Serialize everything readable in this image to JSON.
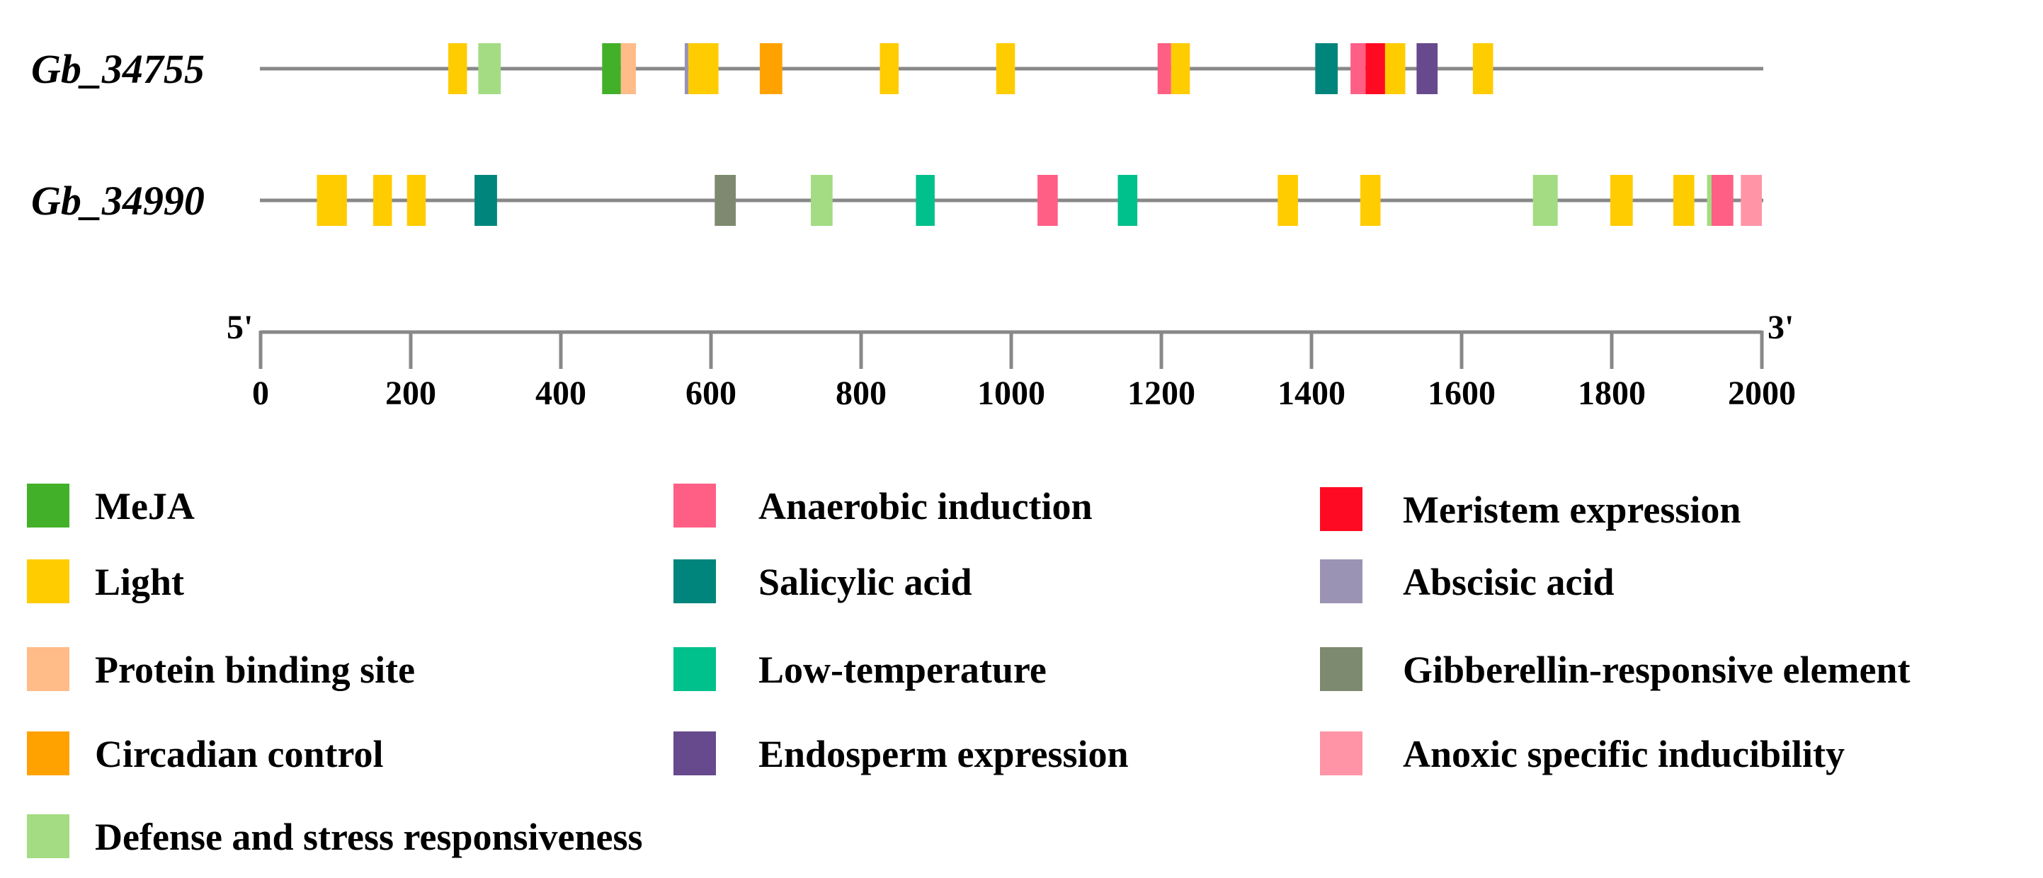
{
  "chart_data": {
    "type": "promoter-element-map",
    "genes": [
      {
        "name": "Gb_34755",
        "elements": [
          {
            "type": "Light",
            "start": 250,
            "end": 275
          },
          {
            "type": "Defense and stress responsiveness",
            "start": 290,
            "end": 320
          },
          {
            "type": "MeJA",
            "start": 455,
            "end": 480
          },
          {
            "type": "Protein binding site",
            "start": 480,
            "end": 500
          },
          {
            "type": "Abscisic acid",
            "start": 565,
            "end": 570
          },
          {
            "type": "Light",
            "start": 570,
            "end": 610
          },
          {
            "type": "Circadian control",
            "start": 665,
            "end": 695
          },
          {
            "type": "Light",
            "start": 825,
            "end": 850
          },
          {
            "type": "Light",
            "start": 980,
            "end": 1005
          },
          {
            "type": "Anaerobic induction",
            "start": 1195,
            "end": 1213
          },
          {
            "type": "Light",
            "start": 1213,
            "end": 1238
          },
          {
            "type": "Salicylic acid",
            "start": 1405,
            "end": 1435
          },
          {
            "type": "Anaerobic induction",
            "start": 1452,
            "end": 1472
          },
          {
            "type": "Meristem expression",
            "start": 1472,
            "end": 1498
          },
          {
            "type": "Light",
            "start": 1498,
            "end": 1525
          },
          {
            "type": "Endosperm expression",
            "start": 1540,
            "end": 1568
          },
          {
            "type": "Light",
            "start": 1615,
            "end": 1642
          }
        ]
      },
      {
        "name": "Gb_34990",
        "elements": [
          {
            "type": "Light",
            "start": 75,
            "end": 115
          },
          {
            "type": "Light",
            "start": 150,
            "end": 175
          },
          {
            "type": "Light",
            "start": 195,
            "end": 220
          },
          {
            "type": "Salicylic acid",
            "start": 285,
            "end": 315
          },
          {
            "type": "Gibberellin-responsive element",
            "start": 605,
            "end": 633
          },
          {
            "type": "Defense and stress responsiveness",
            "start": 733,
            "end": 762
          },
          {
            "type": "Low-temperature",
            "start": 873,
            "end": 898
          },
          {
            "type": "Anaerobic induction",
            "start": 1035,
            "end": 1062
          },
          {
            "type": "Low-temperature",
            "start": 1142,
            "end": 1168
          },
          {
            "type": "Light",
            "start": 1355,
            "end": 1382
          },
          {
            "type": "Light",
            "start": 1465,
            "end": 1492
          },
          {
            "type": "Defense and stress responsiveness",
            "start": 1695,
            "end": 1728
          },
          {
            "type": "Light",
            "start": 1798,
            "end": 1828
          },
          {
            "type": "Light",
            "start": 1882,
            "end": 1910
          },
          {
            "type": "Defense and stress responsiveness",
            "start": 1927,
            "end": 1933
          },
          {
            "type": "Anaerobic induction",
            "start": 1933,
            "end": 1962
          },
          {
            "type": "Anoxic specific inducibility",
            "start": 1972,
            "end": 2000
          }
        ]
      }
    ],
    "axis": {
      "min": 0,
      "max": 2000,
      "ticks": [
        0,
        200,
        400,
        600,
        800,
        1000,
        1200,
        1400,
        1600,
        1800,
        2000
      ],
      "start_label": "5'",
      "end_label": "3'"
    },
    "legend": [
      {
        "label": "MeJA",
        "color": "#43B02A"
      },
      {
        "label": "Light",
        "color": "#FFCC00"
      },
      {
        "label": "Protein binding site",
        "color": "#FFBB88"
      },
      {
        "label": "Circadian control",
        "color": "#FFA200"
      },
      {
        "label": "Defense and stress responsiveness",
        "color": "#A3DC82"
      },
      {
        "label": "Anaerobic induction",
        "color": "#FF5F85"
      },
      {
        "label": "Salicylic acid",
        "color": "#00857C"
      },
      {
        "label": "Low-temperature",
        "color": "#00C08B"
      },
      {
        "label": "Endosperm expression",
        "color": "#674A8D"
      },
      {
        "label": "Meristem expression",
        "color": "#FF0A23"
      },
      {
        "label": "Abscisic acid",
        "color": "#9B93B3"
      },
      {
        "label": "Gibberellin-responsive element",
        "color": "#7E8A6F"
      },
      {
        "label": "Anoxic specific inducibility",
        "color": "#FF94A6"
      }
    ],
    "line_color": "#888888"
  }
}
